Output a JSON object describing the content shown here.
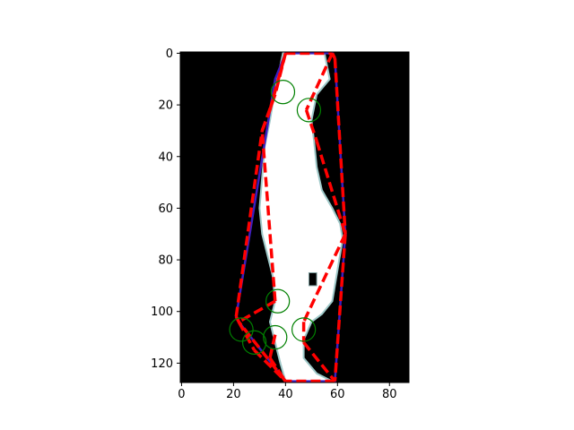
{
  "chart_data": {
    "type": "image",
    "title": "",
    "xlabel": "",
    "ylabel": "",
    "xlim": [
      -0.5,
      87.5
    ],
    "ylim": [
      127.5,
      -0.5
    ],
    "y_inverted": true,
    "x_ticks": [
      0,
      20,
      40,
      60,
      80
    ],
    "y_ticks": [
      0,
      20,
      40,
      60,
      80,
      100,
      120
    ],
    "x_tick_labels": [
      "0",
      "20",
      "40",
      "60",
      "80"
    ],
    "y_tick_labels": [
      "0",
      "20",
      "40",
      "60",
      "80",
      "100",
      "120"
    ],
    "grid": false,
    "background_color": "#000000",
    "free_space_color": "#ffffff",
    "free_space_polygon": [
      [
        39,
        0
      ],
      [
        55,
        0
      ],
      [
        57,
        10
      ],
      [
        52,
        16
      ],
      [
        50,
        26
      ],
      [
        51,
        34
      ],
      [
        52,
        44
      ],
      [
        54,
        53
      ],
      [
        58,
        60
      ],
      [
        61,
        66
      ],
      [
        62,
        72
      ],
      [
        60,
        84
      ],
      [
        58,
        96
      ],
      [
        54,
        101
      ],
      [
        50,
        104
      ],
      [
        47,
        111
      ],
      [
        47,
        118
      ],
      [
        52,
        124
      ],
      [
        58,
        127
      ],
      [
        40,
        127
      ],
      [
        38,
        120
      ],
      [
        36,
        112
      ],
      [
        34,
        104
      ],
      [
        36,
        96
      ],
      [
        35,
        86
      ],
      [
        33,
        78
      ],
      [
        31,
        70
      ],
      [
        30,
        60
      ],
      [
        31,
        48
      ],
      [
        32,
        36
      ],
      [
        34,
        26
      ],
      [
        36,
        14
      ]
    ],
    "obstacles": [
      [
        49,
        85,
        52,
        90
      ]
    ],
    "series": [
      {
        "style": "convex_hull",
        "color": "#3b1fbf",
        "linestyle": "solid",
        "closed": true,
        "points": [
          [
            40,
            0
          ],
          [
            58,
            0
          ],
          [
            59,
            2
          ],
          [
            63,
            70
          ],
          [
            59,
            127
          ],
          [
            40,
            127
          ],
          [
            22,
            104
          ],
          [
            21,
            102
          ],
          [
            36,
            10
          ]
        ]
      },
      {
        "style": "decomposition_edges",
        "color": "#ff0000",
        "linestyle": "dashed",
        "segments": [
          [
            [
              40,
              0
            ],
            [
              58,
              0
            ]
          ],
          [
            [
              58,
              0
            ],
            [
              59,
              2
            ]
          ],
          [
            [
              59,
              2
            ],
            [
              63,
              70
            ]
          ],
          [
            [
              63,
              70
            ],
            [
              59,
              127
            ]
          ],
          [
            [
              59,
              127
            ],
            [
              40,
              127
            ]
          ],
          [
            [
              40,
              127
            ],
            [
              22,
              104
            ]
          ],
          [
            [
              22,
              104
            ],
            [
              21,
              102
            ]
          ],
          [
            [
              21,
              102
            ],
            [
              31,
              30
            ]
          ],
          [
            [
              31,
              30
            ],
            [
              34,
              22
            ]
          ],
          [
            [
              34,
              22
            ],
            [
              40,
              0
            ]
          ],
          [
            [
              40,
              0
            ],
            [
              36,
              16
            ]
          ],
          [
            [
              36,
              16
            ],
            [
              31,
              30
            ]
          ],
          [
            [
              58,
              0
            ],
            [
              48,
              22
            ]
          ],
          [
            [
              48,
              22
            ],
            [
              52,
              34
            ]
          ],
          [
            [
              52,
              34
            ],
            [
              63,
              70
            ]
          ],
          [
            [
              63,
              70
            ],
            [
              47,
              104
            ]
          ],
          [
            [
              47,
              104
            ],
            [
              47,
              112
            ]
          ],
          [
            [
              47,
              112
            ],
            [
              59,
              127
            ]
          ],
          [
            [
              36,
              96
            ],
            [
              22,
              104
            ]
          ],
          [
            [
              36,
              96
            ],
            [
              31,
              30
            ]
          ],
          [
            [
              22,
              104
            ],
            [
              28,
              115
            ]
          ],
          [
            [
              28,
              115
            ],
            [
              40,
              127
            ]
          ],
          [
            [
              36,
              109
            ],
            [
              34,
              118
            ]
          ],
          [
            [
              34,
              118
            ],
            [
              40,
              127
            ]
          ]
        ]
      },
      {
        "style": "circle_markers",
        "color": "#008000",
        "radius": 4.5,
        "centers": [
          [
            39,
            15
          ],
          [
            49,
            22
          ],
          [
            37,
            96
          ],
          [
            23,
            107
          ],
          [
            28,
            112
          ],
          [
            36,
            110
          ],
          [
            47,
            107
          ]
        ]
      }
    ]
  }
}
